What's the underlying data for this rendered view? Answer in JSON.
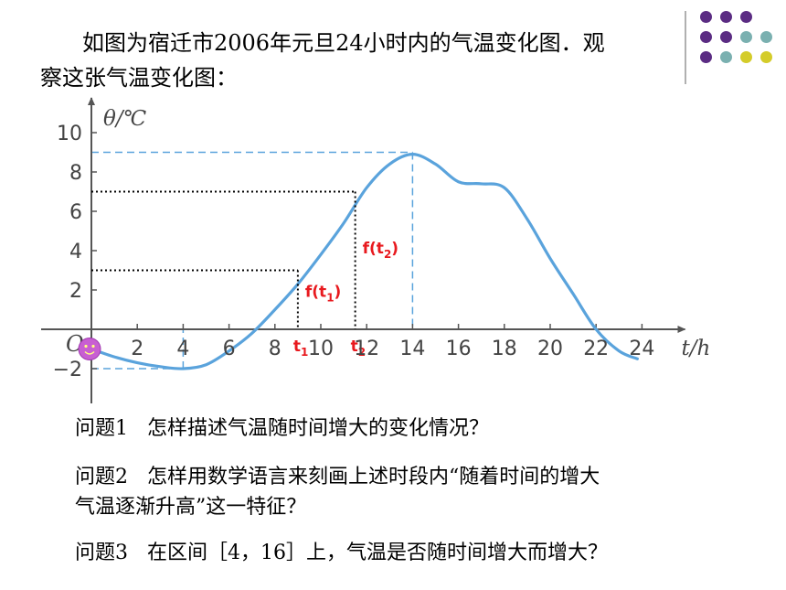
{
  "intro": {
    "line1": "如图为宿迁市2006年元旦24小时内的气温变化图．观",
    "line2": "察这张气温变化图："
  },
  "decor_colors": [
    "#5b2c83",
    "#7ab0b0",
    "#d4cc2a"
  ],
  "chart_data": {
    "type": "line",
    "xlabel": "t/h",
    "ylabel": "θ/℃",
    "origin_label": "O",
    "xlim": [
      0,
      25
    ],
    "ylim": [
      -2,
      10
    ],
    "x_ticks": [
      2,
      4,
      6,
      8,
      10,
      12,
      14,
      16,
      18,
      20,
      22,
      24
    ],
    "y_ticks": [
      -2,
      2,
      4,
      6,
      8,
      10
    ],
    "line_color": "#5aa3dc",
    "series": [
      {
        "x": [
          0,
          1,
          2,
          3,
          4,
          5,
          6,
          7,
          8,
          9,
          10,
          11,
          12,
          13,
          14,
          15,
          16,
          17,
          18,
          19,
          20,
          21,
          22,
          23,
          23.8
        ],
        "y": [
          -1,
          -1.4,
          -1.7,
          -1.9,
          -2,
          -1.8,
          -1.1,
          -0.2,
          1,
          2.3,
          3.8,
          5.4,
          7.2,
          8.4,
          8.9,
          8.4,
          7.5,
          7.4,
          7.2,
          5.6,
          3.6,
          1.8,
          0,
          -1.1,
          -1.5
        ]
      }
    ],
    "reference_lines": [
      {
        "style": "dashed",
        "color": "#5aa3dc",
        "x_range": [
          0,
          14
        ],
        "y": 9,
        "drop_to_axis": true
      },
      {
        "style": "dashed",
        "color": "#5aa3dc",
        "x_range": [
          0,
          4
        ],
        "y": -2,
        "drop_to_axis": true
      }
    ],
    "annotations": [
      {
        "x": 9,
        "y": 3,
        "x_label": "t",
        "x_label_sub": "1",
        "value_label": "f(t",
        "value_label_sub": "1",
        "value_label_end": ")",
        "color": "#e8191e"
      },
      {
        "x": 11.5,
        "y": 7,
        "x_label": "t",
        "x_label_sub": "2",
        "value_label": "f(t",
        "value_label_sub": "2",
        "value_label_end": ")",
        "color": "#e8191e"
      }
    ]
  },
  "questions": {
    "q1": "问题1   怎样描述气温随时间增大的变化情况？",
    "q2_line1": "问题2   怎样用数学语言来刻画上述时段内“随着时间的增大",
    "q2_line2": "气温逐渐升高”这一特征？",
    "q3": "问题3   在区间［4，16］上，气温是否随时间增大而增大？"
  }
}
